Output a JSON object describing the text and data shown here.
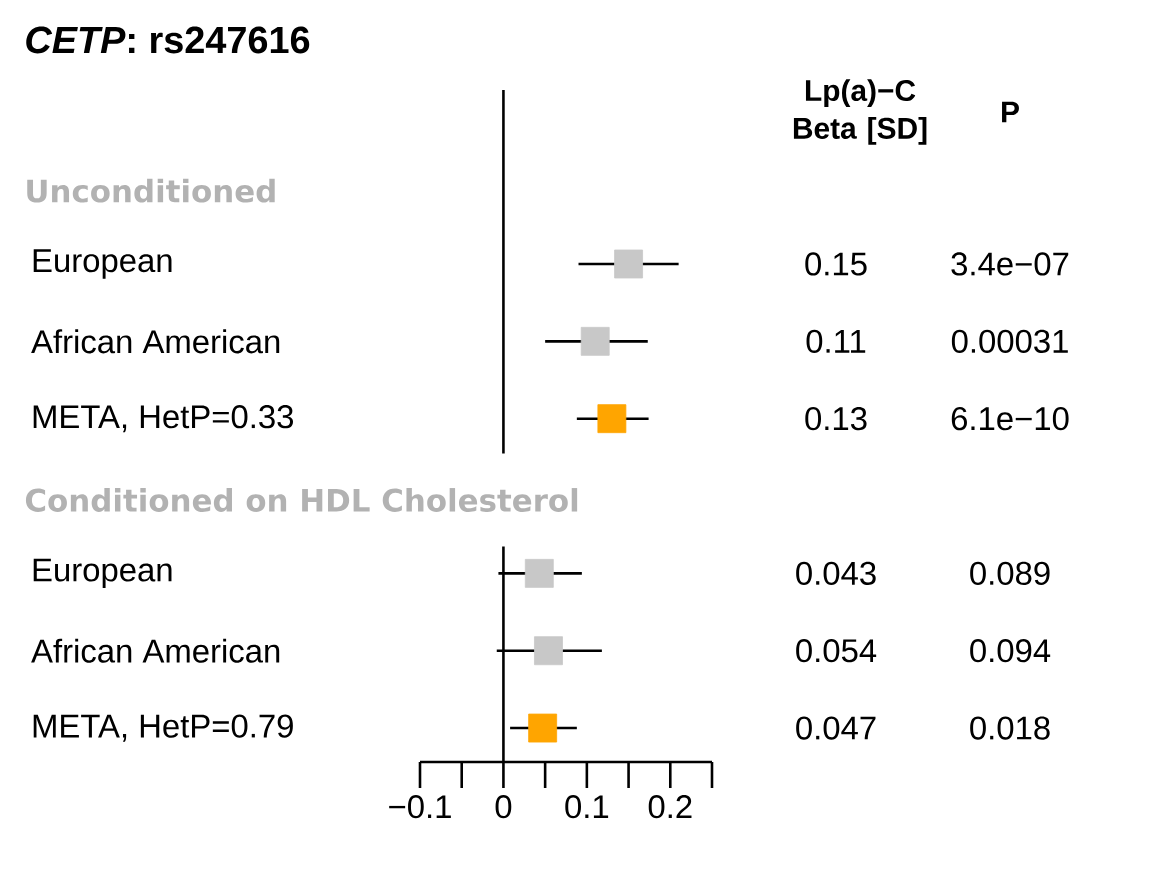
{
  "chart_data": {
    "type": "scatter",
    "title": "*CETP*: rs247616",
    "orientation": "horizontal",
    "categories": [
      "European",
      "African American",
      "META, HetP=0.33",
      null,
      "European",
      "African American",
      "META, HetP=0.79"
    ],
    "values": [
      0.15,
      0.11,
      0.13,
      null,
      0.043,
      0.054,
      0.047
    ],
    "errors": [
      [
        0.09,
        0.21
      ],
      [
        0.05,
        0.173
      ],
      [
        0.088,
        0.174
      ],
      null,
      [
        -0.006,
        0.094
      ],
      [
        -0.008,
        0.118
      ],
      [
        0.008,
        0.088
      ]
    ],
    "colors": [
      "#c8c8c8",
      "#c8c8c8",
      "#ffa500",
      null,
      "#c8c8c8",
      "#c8c8c8",
      "#ffa500"
    ],
    "marker": "square",
    "data_labels": true,
    "xlim": [
      -0.1,
      0.25
    ],
    "xticks": [
      {
        "value": -0.1,
        "label": "−0.1"
      },
      {
        "value": -0.05,
        "label": null
      },
      0,
      {
        "value": 0.05,
        "label": null
      },
      0.1,
      {
        "value": 0.15,
        "label": null
      },
      0.2,
      {
        "value": 0.25,
        "label": null
      }
    ],
    "ref_lines": [
      {
        "axis": "x",
        "value": 0
      }
    ],
    "annotations": [
      "Lp(a)−C Beta [SD]",
      "P",
      "Unconditioned",
      "Conditioned on HDL Cholesterol",
      "3.4e−07",
      "0.00031",
      "6.1e−10",
      "0.089",
      "0.094",
      "0.018"
    ]
  }
}
